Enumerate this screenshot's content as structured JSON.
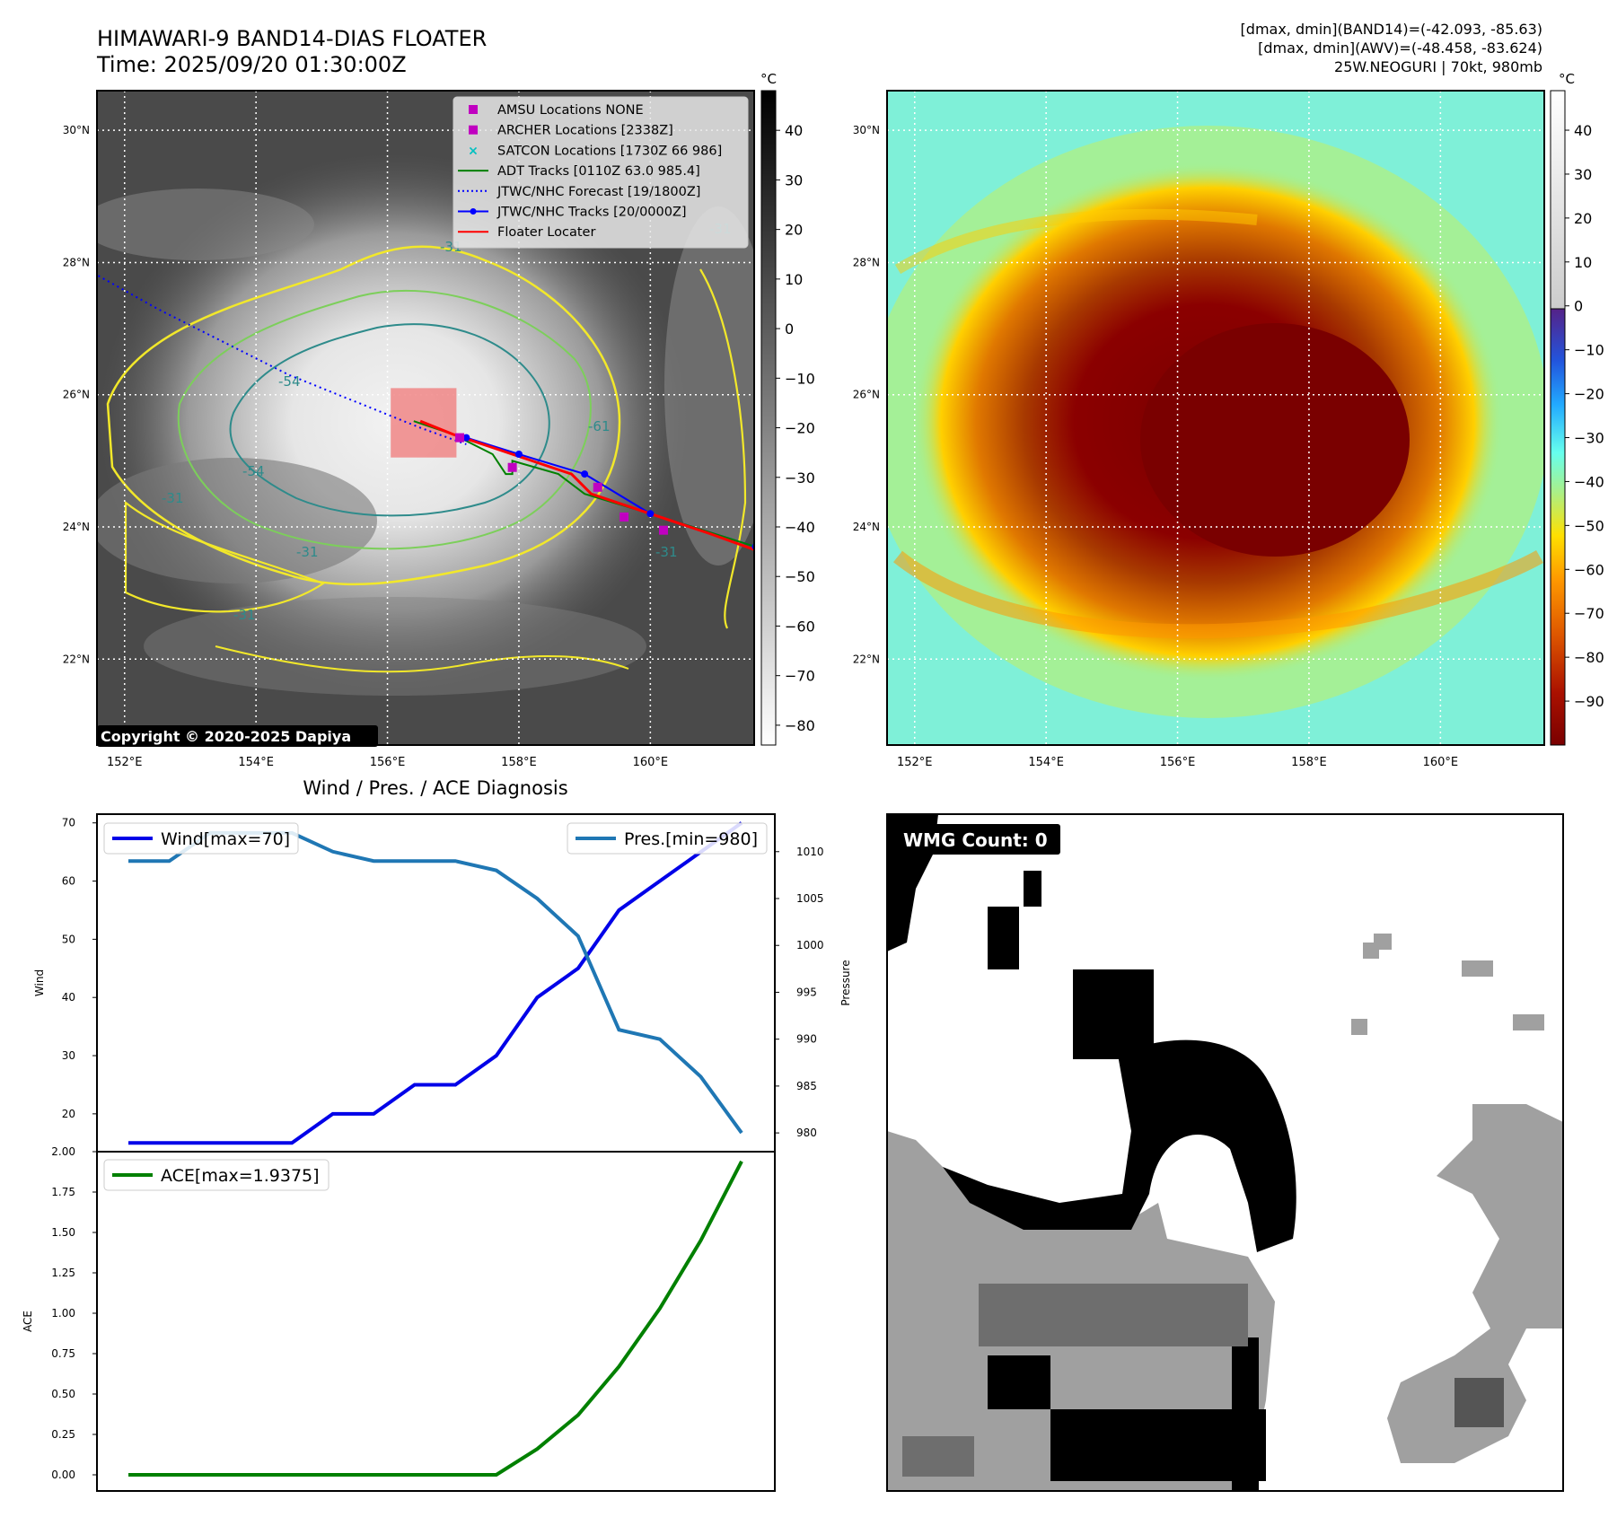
{
  "header": {
    "title_line1": "HIMAWARI-9 BAND14-DIAS FLOATER",
    "title_line2": "Time: 2025/09/20 01:30:00Z",
    "info_line1": "[dmax, dmin](BAND14)=(-42.093, -85.63)",
    "info_line2": "[dmax, dmin](AWV)=(-48.458, -83.624)",
    "info_line3": "25W.NEOGURI | 70kt, 980mb"
  },
  "copyright": "Copyright © 2020-2025 Dapiya",
  "map": {
    "lat_labels": [
      "30°N",
      "28°N",
      "26°N",
      "24°N",
      "22°N"
    ],
    "lat_values": [
      30,
      28,
      26,
      24,
      22
    ],
    "lon_labels": [
      "152°E",
      "154°E",
      "156°E",
      "158°E",
      "160°E"
    ],
    "lon_values": [
      152,
      154,
      156,
      158,
      160
    ],
    "lon_range": [
      151.58,
      161.58
    ],
    "lat_range": [
      20.7,
      30.6
    ],
    "contour_labels": [
      "-54",
      "-31",
      "-31",
      "-31",
      "-31",
      "-31",
      "-54",
      "-61",
      "-31"
    ],
    "legend": [
      {
        "label": "AMSU Locations NONE",
        "kind": "square",
        "color": "#c000c0"
      },
      {
        "label": "ARCHER Locations [2338Z]",
        "kind": "square",
        "color": "#c000c0"
      },
      {
        "label": "SATCON Locations [1730Z 66 986]",
        "kind": "cross",
        "color": "#00c0c0"
      },
      {
        "label": "ADT Tracks [0110Z 63.0 985.4]",
        "kind": "line",
        "color": "#008000"
      },
      {
        "label": "JTWC/NHC Forecast [19/1800Z]",
        "kind": "dotted",
        "color": "#0000ff"
      },
      {
        "label": "JTWC/NHC Tracks [20/0000Z]",
        "kind": "line-dot",
        "color": "#0000ff"
      },
      {
        "label": "Floater Locater",
        "kind": "line",
        "color": "#ff0000"
      }
    ],
    "jtwc_forecast": [
      [
        151.6,
        27.8
      ],
      [
        152.5,
        27.3
      ],
      [
        153.5,
        26.8
      ],
      [
        154.5,
        26.3
      ],
      [
        155.5,
        25.9
      ],
      [
        156.5,
        25.5
      ],
      [
        157.2,
        25.25
      ]
    ],
    "jtwc_track": [
      [
        157.2,
        25.35
      ],
      [
        158.0,
        25.1
      ],
      [
        159.0,
        24.8
      ],
      [
        160.0,
        24.2
      ],
      [
        161.6,
        23.7
      ]
    ],
    "adt_track": [
      [
        156.4,
        25.6
      ],
      [
        157.0,
        25.4
      ],
      [
        157.6,
        25.1
      ],
      [
        157.8,
        24.8
      ],
      [
        157.9,
        24.8
      ],
      [
        157.9,
        25.0
      ],
      [
        158.6,
        24.8
      ],
      [
        159.0,
        24.5
      ],
      [
        160.0,
        24.2
      ],
      [
        161.6,
        23.7
      ]
    ],
    "floater_track": [
      [
        156.5,
        25.6
      ],
      [
        157.0,
        25.4
      ],
      [
        157.6,
        25.2
      ],
      [
        158.2,
        25.0
      ],
      [
        158.8,
        24.8
      ],
      [
        159.1,
        24.5
      ],
      [
        160.0,
        24.2
      ],
      [
        160.9,
        23.9
      ],
      [
        161.6,
        23.65
      ]
    ],
    "archer_points": [
      [
        157.1,
        25.35
      ],
      [
        157.9,
        24.9
      ],
      [
        159.2,
        24.6
      ],
      [
        159.6,
        24.15
      ],
      [
        160.2,
        23.95
      ]
    ],
    "floater_box": {
      "lon0": 156.05,
      "lon1": 157.05,
      "lat0": 25.05,
      "lat1": 26.1
    },
    "colorbar_left": {
      "unit": "°C",
      "ticks": [
        40,
        30,
        20,
        10,
        0,
        -10,
        -20,
        -30,
        -40,
        -50,
        -60,
        -70,
        -80
      ],
      "range": [
        48,
        -84
      ]
    },
    "colorbar_right": {
      "unit": "°C",
      "ticks": [
        40,
        30,
        20,
        10,
        0,
        -10,
        -20,
        -30,
        -40,
        -50,
        -60,
        -70,
        -80,
        -90
      ],
      "range": [
        49,
        -100
      ]
    }
  },
  "wind_title": "Wind / Pres. / ACE Diagnosis",
  "chart_data": [
    {
      "type": "line",
      "title": "Wind / Pres. / ACE Diagnosis",
      "ylabel": "Wind",
      "ylabel_right": "Pressure",
      "ylim": [
        13.5,
        71.5
      ],
      "ylim_right": [
        978,
        1014
      ],
      "yticks": [
        20,
        30,
        40,
        50,
        60,
        70
      ],
      "yticks_right": [
        980,
        985,
        990,
        995,
        1000,
        1005,
        1010
      ],
      "x": [
        0,
        1,
        2,
        3,
        4,
        5,
        6,
        7,
        8,
        9,
        10,
        11,
        12,
        13,
        14,
        15
      ],
      "series": [
        {
          "name": "Wind[max=70]",
          "axis": "left",
          "color": "#0000e8",
          "values": [
            15,
            15,
            15,
            15,
            15,
            20,
            20,
            25,
            25,
            30,
            40,
            45,
            55,
            60,
            65,
            70
          ]
        },
        {
          "name": "Pres.[min=980]",
          "axis": "right",
          "color": "#1f77b4",
          "values": [
            1009,
            1009,
            1012,
            1012,
            1012,
            1010,
            1009,
            1009,
            1009,
            1008,
            1005,
            1001,
            991,
            990,
            986,
            980
          ]
        }
      ]
    },
    {
      "type": "line",
      "ylabel": "ACE",
      "ylim": [
        -0.1,
        2.0
      ],
      "yticks": [
        0.0,
        0.25,
        0.5,
        0.75,
        1.0,
        1.25,
        1.5,
        1.75,
        2.0
      ],
      "ytick_labels": [
        "0.00",
        "0.25",
        "0.50",
        "0.75",
        "1.00",
        "1.25",
        "1.50",
        "1.75",
        "2.00"
      ],
      "x": [
        0,
        1,
        2,
        3,
        4,
        5,
        6,
        7,
        8,
        9,
        10,
        11,
        12,
        13,
        14,
        15
      ],
      "series": [
        {
          "name": "ACE[max=1.9375]",
          "color": "#008000",
          "values": [
            0,
            0,
            0,
            0,
            0,
            0,
            0,
            0,
            0,
            0,
            0.16,
            0.37,
            0.67,
            1.03,
            1.45,
            1.94
          ]
        }
      ]
    }
  ],
  "wmg": {
    "label": "WMG Count: 0"
  }
}
